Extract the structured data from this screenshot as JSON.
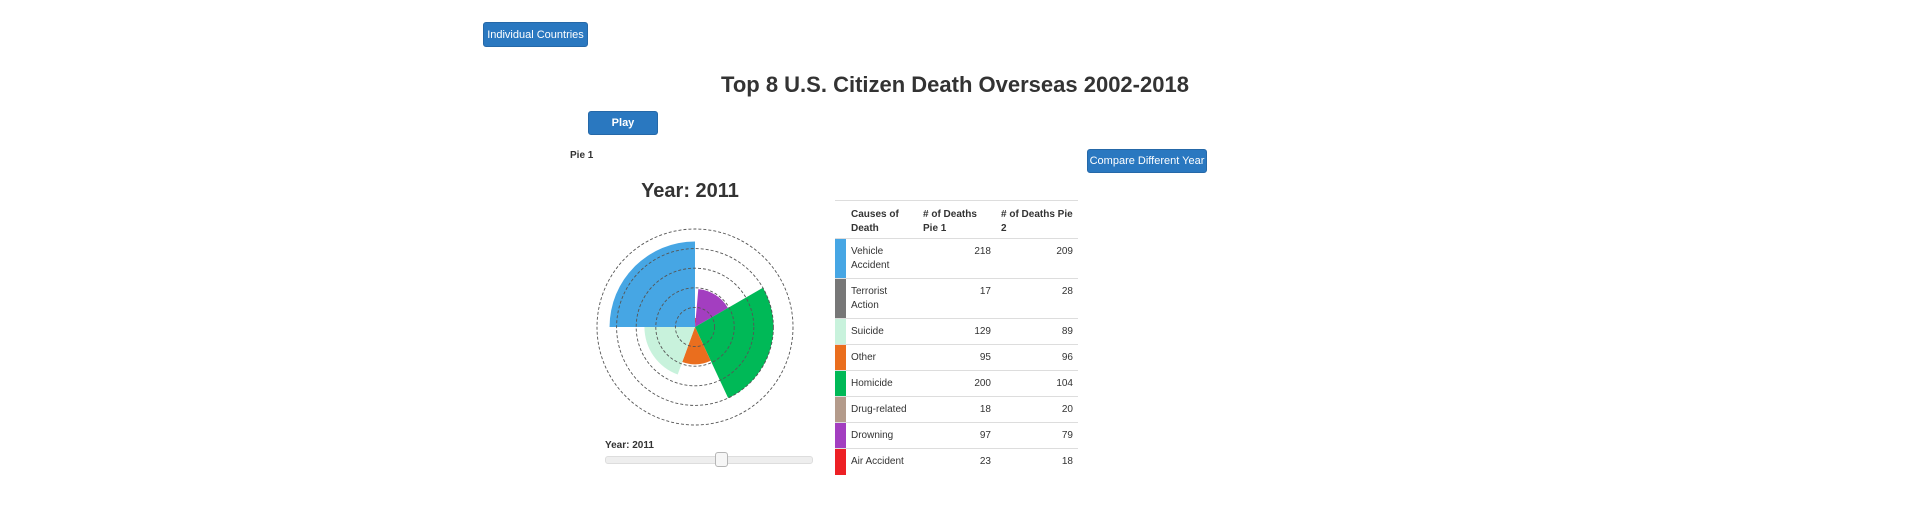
{
  "buttons": {
    "individual_countries": "Individual Countries",
    "play": "Play",
    "compare": "Compare Different Year"
  },
  "title": "Top 8 U.S. Citizen Death Overseas 2002-2018",
  "pie_label": "Pie 1",
  "year_heading": "Year: 2011",
  "slider": {
    "label": "Year: 2011",
    "min": 2002,
    "max": 2018,
    "value": 2011
  },
  "table": {
    "headers": [
      "Causes of Death",
      "# of Deaths Pie 1",
      "# of Deaths Pie 2"
    ]
  },
  "chart_data": {
    "type": "polar-area",
    "title": "Year: 2011",
    "max_value": 218,
    "ring_values": [
      50,
      100,
      150,
      200,
      250
    ],
    "categories": [
      "Vehicle Accident",
      "Terrorist Action",
      "Suicide",
      "Other",
      "Homicide",
      "Drug-related",
      "Drowning",
      "Air Accident"
    ],
    "colors": [
      "#46a6e4",
      "#777777",
      "#c8f2dc",
      "#ea6e1e",
      "#00b957",
      "#b49b8b",
      "#a33ec0",
      "#ed2025"
    ],
    "series": [
      {
        "name": "Pie 1",
        "values": [
          218,
          17,
          129,
          95,
          200,
          18,
          97,
          23
        ]
      },
      {
        "name": "Pie 2",
        "values": [
          209,
          28,
          89,
          96,
          104,
          20,
          79,
          18
        ]
      }
    ],
    "sectors": [
      {
        "category": "Vehicle Accident",
        "value": 218,
        "start_deg": 270,
        "end_deg": 360
      },
      {
        "category": "Air Accident",
        "value": 23,
        "start_deg": 0,
        "end_deg": 5
      },
      {
        "category": "Drowning",
        "value": 97,
        "start_deg": 5,
        "end_deg": 60
      },
      {
        "category": "Homicide",
        "value": 200,
        "start_deg": 60,
        "end_deg": 155
      },
      {
        "category": "Other",
        "value": 95,
        "start_deg": 155,
        "end_deg": 200
      },
      {
        "category": "Suicide",
        "value": 129,
        "start_deg": 200,
        "end_deg": 270
      },
      {
        "category": "Terrorist Action",
        "value": 17,
        "start_deg": 0,
        "end_deg": 0
      },
      {
        "category": "Drug-related",
        "value": 18,
        "start_deg": 0,
        "end_deg": 0
      }
    ]
  }
}
